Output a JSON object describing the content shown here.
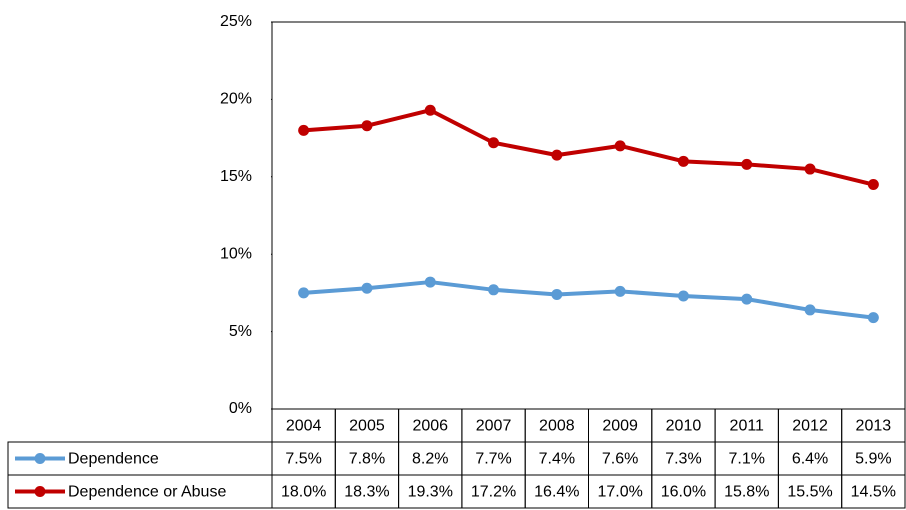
{
  "chart_data": {
    "type": "line",
    "categories": [
      "2004",
      "2005",
      "2006",
      "2007",
      "2008",
      "2009",
      "2010",
      "2011",
      "2012",
      "2013"
    ],
    "series": [
      {
        "name": "Dependence",
        "color": "#5b9bd5",
        "values": [
          7.5,
          7.8,
          8.2,
          7.7,
          7.4,
          7.6,
          7.3,
          7.1,
          6.4,
          5.9
        ],
        "value_labels": [
          "7.5%",
          "7.8%",
          "8.2%",
          "7.7%",
          "7.4%",
          "7.6%",
          "7.3%",
          "7.1%",
          "6.4%",
          "5.9%"
        ]
      },
      {
        "name": "Dependence or Abuse",
        "color": "#c00000",
        "values": [
          18.0,
          18.3,
          19.3,
          17.2,
          16.4,
          17.0,
          16.0,
          15.8,
          15.5,
          14.5
        ],
        "value_labels": [
          "18.0%",
          "18.3%",
          "19.3%",
          "17.2%",
          "16.4%",
          "17.0%",
          "16.0%",
          "15.8%",
          "15.5%",
          "14.5%"
        ]
      }
    ],
    "ylim": [
      0,
      25
    ],
    "yticks": [
      {
        "value": 0,
        "label": "0%"
      },
      {
        "value": 5,
        "label": "5%"
      },
      {
        "value": 10,
        "label": "10%"
      },
      {
        "value": 15,
        "label": "15%"
      },
      {
        "value": 20,
        "label": "20%"
      },
      {
        "value": 25,
        "label": "25%"
      }
    ],
    "grid": false
  }
}
